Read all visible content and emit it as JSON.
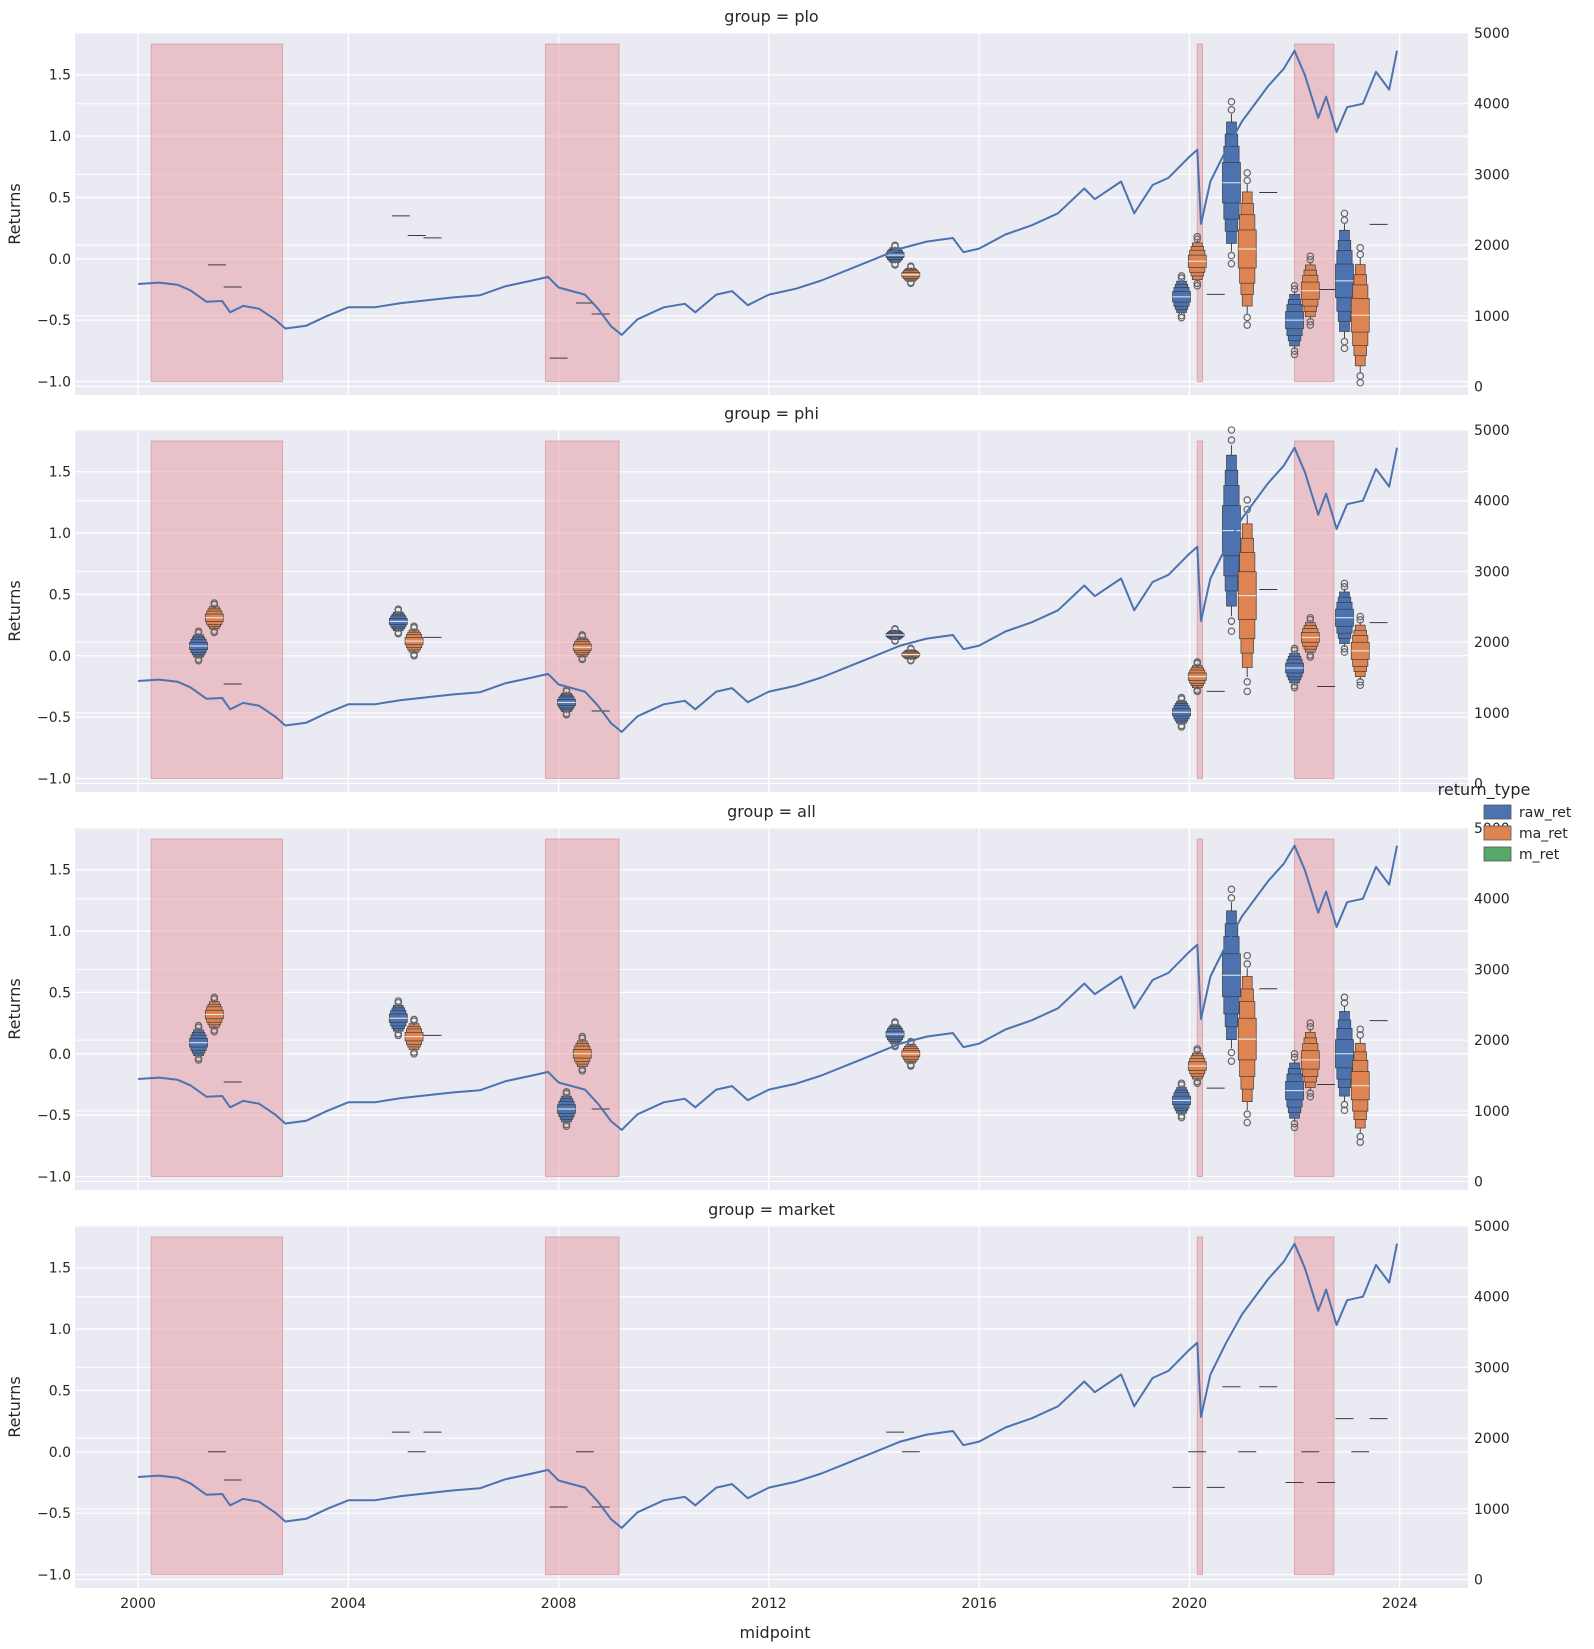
{
  "colors": {
    "raw_ret": "#4c72b0",
    "ma_ret": "#dd8452",
    "m_ret": "#55a868",
    "index_line": "#4c72b0",
    "recession_fill": "#e8a0a8",
    "panel_bg": "#eaeaf2",
    "grid": "#ffffff"
  },
  "chart_data": {
    "type": "boxen + line",
    "xlabel": "midpoint",
    "ylabel": "Returns",
    "x_ticks": [
      "2000",
      "2004",
      "2008",
      "2012",
      "2016",
      "2020",
      "2024"
    ],
    "x_tick_values": [
      2000,
      2004,
      2008,
      2012,
      2016,
      2020,
      2024
    ],
    "xlim": [
      1998.8,
      2025.3
    ],
    "ylim": [
      -1.11,
      1.84
    ],
    "y_ticks": [
      -1.0,
      -0.5,
      0.0,
      0.5,
      1.0,
      1.5
    ],
    "y_tick_labels": [
      "−1.0",
      "−0.5",
      "0.0",
      "0.5",
      "1.0",
      "1.5"
    ],
    "y2lim": [
      -120,
      5000
    ],
    "y2_ticks": [
      0,
      1000,
      2000,
      3000,
      4000,
      5000
    ],
    "y2_tick_labels": [
      "0",
      "1000",
      "2000",
      "3000",
      "4000",
      "5000"
    ],
    "grid": true,
    "legend": {
      "title": "return_type",
      "placement": "right",
      "entries": [
        "raw_ret",
        "ma_ret",
        "m_ret"
      ]
    },
    "shaded_periods": [
      [
        2000.25,
        2002.75
      ],
      [
        2007.75,
        2009.15
      ],
      [
        2020.15,
        2020.25
      ],
      [
        2022.0,
        2022.75
      ]
    ],
    "shade_range": [
      -1.0,
      1.75
    ],
    "index_series": {
      "name": "",
      "points": [
        [
          2000.0,
          1450
        ],
        [
          2000.4,
          1470
        ],
        [
          2000.75,
          1440
        ],
        [
          2001.0,
          1360
        ],
        [
          2001.3,
          1200
        ],
        [
          2001.6,
          1210
        ],
        [
          2001.75,
          1050
        ],
        [
          2002.0,
          1140
        ],
        [
          2002.3,
          1100
        ],
        [
          2002.6,
          950
        ],
        [
          2002.8,
          820
        ],
        [
          2003.2,
          860
        ],
        [
          2003.6,
          1000
        ],
        [
          2004.0,
          1120
        ],
        [
          2004.5,
          1120
        ],
        [
          2005.0,
          1180
        ],
        [
          2005.5,
          1220
        ],
        [
          2006.0,
          1260
        ],
        [
          2006.5,
          1290
        ],
        [
          2007.0,
          1420
        ],
        [
          2007.5,
          1500
        ],
        [
          2007.8,
          1550
        ],
        [
          2008.0,
          1400
        ],
        [
          2008.5,
          1300
        ],
        [
          2008.75,
          1100
        ],
        [
          2009.0,
          850
        ],
        [
          2009.2,
          730
        ],
        [
          2009.5,
          950
        ],
        [
          2010.0,
          1120
        ],
        [
          2010.4,
          1170
        ],
        [
          2010.6,
          1050
        ],
        [
          2011.0,
          1300
        ],
        [
          2011.3,
          1350
        ],
        [
          2011.6,
          1150
        ],
        [
          2012.0,
          1300
        ],
        [
          2012.5,
          1380
        ],
        [
          2013.0,
          1500
        ],
        [
          2013.5,
          1650
        ],
        [
          2014.0,
          1800
        ],
        [
          2014.5,
          1950
        ],
        [
          2015.0,
          2050
        ],
        [
          2015.5,
          2100
        ],
        [
          2015.7,
          1900
        ],
        [
          2016.0,
          1950
        ],
        [
          2016.5,
          2150
        ],
        [
          2017.0,
          2280
        ],
        [
          2017.5,
          2450
        ],
        [
          2018.0,
          2800
        ],
        [
          2018.2,
          2650
        ],
        [
          2018.7,
          2900
        ],
        [
          2018.95,
          2450
        ],
        [
          2019.3,
          2850
        ],
        [
          2019.6,
          2950
        ],
        [
          2020.0,
          3250
        ],
        [
          2020.15,
          3350
        ],
        [
          2020.22,
          2300
        ],
        [
          2020.4,
          2900
        ],
        [
          2020.7,
          3350
        ],
        [
          2021.0,
          3750
        ],
        [
          2021.5,
          4250
        ],
        [
          2021.8,
          4500
        ],
        [
          2022.0,
          4750
        ],
        [
          2022.2,
          4400
        ],
        [
          2022.45,
          3800
        ],
        [
          2022.6,
          4100
        ],
        [
          2022.8,
          3600
        ],
        [
          2023.0,
          3950
        ],
        [
          2023.3,
          4000
        ],
        [
          2023.55,
          4450
        ],
        [
          2023.8,
          4200
        ],
        [
          2023.95,
          4750
        ]
      ]
    },
    "panels": [
      {
        "title": "group = plo",
        "boxes": [
          {
            "type": "raw_ret",
            "x": 2014.4,
            "median": 0.03,
            "spread": 0.08
          },
          {
            "type": "ma_ret",
            "x": 2014.7,
            "median": -0.13,
            "spread": 0.07
          },
          {
            "type": "raw_ret",
            "x": 2019.85,
            "median": -0.31,
            "spread": 0.17
          },
          {
            "type": "ma_ret",
            "x": 2020.15,
            "median": -0.02,
            "spread": 0.2
          },
          {
            "type": "raw_ret",
            "x": 2020.8,
            "median": 0.62,
            "spread": 0.66
          },
          {
            "type": "ma_ret",
            "x": 2021.1,
            "median": 0.08,
            "spread": 0.62
          },
          {
            "type": "raw_ret",
            "x": 2022.0,
            "median": -0.5,
            "spread": 0.28
          },
          {
            "type": "ma_ret",
            "x": 2022.3,
            "median": -0.26,
            "spread": 0.28
          },
          {
            "type": "raw_ret",
            "x": 2022.95,
            "median": -0.18,
            "spread": 0.55
          },
          {
            "type": "ma_ret",
            "x": 2023.25,
            "median": -0.46,
            "spread": 0.55
          }
        ],
        "medians": [
          {
            "x": 2001.5,
            "y": -0.05
          },
          {
            "x": 2001.8,
            "y": -0.23
          },
          {
            "x": 2005.0,
            "y": 0.35
          },
          {
            "x": 2005.3,
            "y": 0.19
          },
          {
            "x": 2005.6,
            "y": 0.17
          },
          {
            "x": 2008.0,
            "y": -0.81
          },
          {
            "x": 2008.5,
            "y": -0.36
          },
          {
            "x": 2008.8,
            "y": -0.45
          },
          {
            "x": 2020.5,
            "y": -0.29
          },
          {
            "x": 2021.5,
            "y": 0.54
          },
          {
            "x": 2022.6,
            "y": -0.25
          },
          {
            "x": 2023.6,
            "y": 0.28
          }
        ]
      },
      {
        "title": "group = phi",
        "boxes": [
          {
            "type": "raw_ret",
            "x": 2001.15,
            "median": 0.08,
            "spread": 0.12
          },
          {
            "type": "ma_ret",
            "x": 2001.45,
            "median": 0.31,
            "spread": 0.12
          },
          {
            "type": "raw_ret",
            "x": 2004.95,
            "median": 0.28,
            "spread": 0.1
          },
          {
            "type": "ma_ret",
            "x": 2005.25,
            "median": 0.12,
            "spread": 0.12
          },
          {
            "type": "raw_ret",
            "x": 2008.15,
            "median": -0.38,
            "spread": 0.1
          },
          {
            "type": "ma_ret",
            "x": 2008.45,
            "median": 0.07,
            "spread": 0.1
          },
          {
            "type": "raw_ret",
            "x": 2014.4,
            "median": 0.17,
            "spread": 0.05
          },
          {
            "type": "ma_ret",
            "x": 2014.7,
            "median": 0.01,
            "spread": 0.05
          },
          {
            "type": "raw_ret",
            "x": 2019.85,
            "median": -0.46,
            "spread": 0.12
          },
          {
            "type": "ma_ret",
            "x": 2020.15,
            "median": -0.17,
            "spread": 0.12
          },
          {
            "type": "raw_ret",
            "x": 2020.8,
            "median": 1.02,
            "spread": 0.82
          },
          {
            "type": "ma_ret",
            "x": 2021.1,
            "median": 0.49,
            "spread": 0.78
          },
          {
            "type": "raw_ret",
            "x": 2022.0,
            "median": -0.1,
            "spread": 0.16
          },
          {
            "type": "ma_ret",
            "x": 2022.3,
            "median": 0.15,
            "spread": 0.16
          },
          {
            "type": "raw_ret",
            "x": 2022.95,
            "median": 0.31,
            "spread": 0.28
          },
          {
            "type": "ma_ret",
            "x": 2023.25,
            "median": 0.04,
            "spread": 0.28
          }
        ],
        "medians": [
          {
            "x": 2001.8,
            "y": -0.23
          },
          {
            "x": 2005.6,
            "y": 0.15
          },
          {
            "x": 2008.8,
            "y": -0.45
          },
          {
            "x": 2020.5,
            "y": -0.29
          },
          {
            "x": 2021.5,
            "y": 0.54
          },
          {
            "x": 2022.6,
            "y": -0.25
          },
          {
            "x": 2023.6,
            "y": 0.27
          }
        ]
      },
      {
        "title": "group = all",
        "boxes": [
          {
            "type": "raw_ret",
            "x": 2001.15,
            "median": 0.09,
            "spread": 0.14
          },
          {
            "type": "ma_ret",
            "x": 2001.45,
            "median": 0.32,
            "spread": 0.14
          },
          {
            "type": "raw_ret",
            "x": 2004.95,
            "median": 0.29,
            "spread": 0.14
          },
          {
            "type": "ma_ret",
            "x": 2005.25,
            "median": 0.14,
            "spread": 0.14
          },
          {
            "type": "raw_ret",
            "x": 2008.15,
            "median": -0.45,
            "spread": 0.14
          },
          {
            "type": "ma_ret",
            "x": 2008.45,
            "median": 0.0,
            "spread": 0.14
          },
          {
            "type": "raw_ret",
            "x": 2014.4,
            "median": 0.16,
            "spread": 0.1
          },
          {
            "type": "ma_ret",
            "x": 2014.7,
            "median": 0.0,
            "spread": 0.1
          },
          {
            "type": "raw_ret",
            "x": 2019.85,
            "median": -0.38,
            "spread": 0.14
          },
          {
            "type": "ma_ret",
            "x": 2020.15,
            "median": -0.1,
            "spread": 0.14
          },
          {
            "type": "raw_ret",
            "x": 2020.8,
            "median": 0.64,
            "spread": 0.7
          },
          {
            "type": "ma_ret",
            "x": 2021.1,
            "median": 0.12,
            "spread": 0.68
          },
          {
            "type": "raw_ret",
            "x": 2022.0,
            "median": -0.3,
            "spread": 0.3
          },
          {
            "type": "ma_ret",
            "x": 2022.3,
            "median": -0.05,
            "spread": 0.3
          },
          {
            "type": "raw_ret",
            "x": 2022.95,
            "median": 0.0,
            "spread": 0.46
          },
          {
            "type": "ma_ret",
            "x": 2023.25,
            "median": -0.26,
            "spread": 0.46
          }
        ],
        "medians": [
          {
            "x": 2001.8,
            "y": -0.23
          },
          {
            "x": 2005.6,
            "y": 0.15
          },
          {
            "x": 2008.8,
            "y": -0.45
          },
          {
            "x": 2020.5,
            "y": -0.28
          },
          {
            "x": 2021.5,
            "y": 0.53
          },
          {
            "x": 2022.6,
            "y": -0.25
          },
          {
            "x": 2023.6,
            "y": 0.27
          }
        ]
      },
      {
        "title": "group = market",
        "boxes": [],
        "medians": [
          {
            "x": 2001.5,
            "y": 0.0
          },
          {
            "x": 2001.8,
            "y": -0.23
          },
          {
            "x": 2005.0,
            "y": 0.16
          },
          {
            "x": 2005.3,
            "y": 0.0
          },
          {
            "x": 2005.6,
            "y": 0.16
          },
          {
            "x": 2008.0,
            "y": -0.45
          },
          {
            "x": 2008.5,
            "y": 0.0
          },
          {
            "x": 2008.8,
            "y": -0.45
          },
          {
            "x": 2014.4,
            "y": 0.16
          },
          {
            "x": 2014.7,
            "y": 0.0
          },
          {
            "x": 2019.85,
            "y": -0.29
          },
          {
            "x": 2020.15,
            "y": 0.0
          },
          {
            "x": 2020.5,
            "y": -0.29
          },
          {
            "x": 2020.8,
            "y": 0.53
          },
          {
            "x": 2021.1,
            "y": 0.0
          },
          {
            "x": 2021.5,
            "y": 0.53
          },
          {
            "x": 2022.0,
            "y": -0.25
          },
          {
            "x": 2022.3,
            "y": 0.0
          },
          {
            "x": 2022.6,
            "y": -0.25
          },
          {
            "x": 2022.95,
            "y": 0.27
          },
          {
            "x": 2023.25,
            "y": 0.0
          },
          {
            "x": 2023.6,
            "y": 0.27
          }
        ]
      }
    ]
  }
}
